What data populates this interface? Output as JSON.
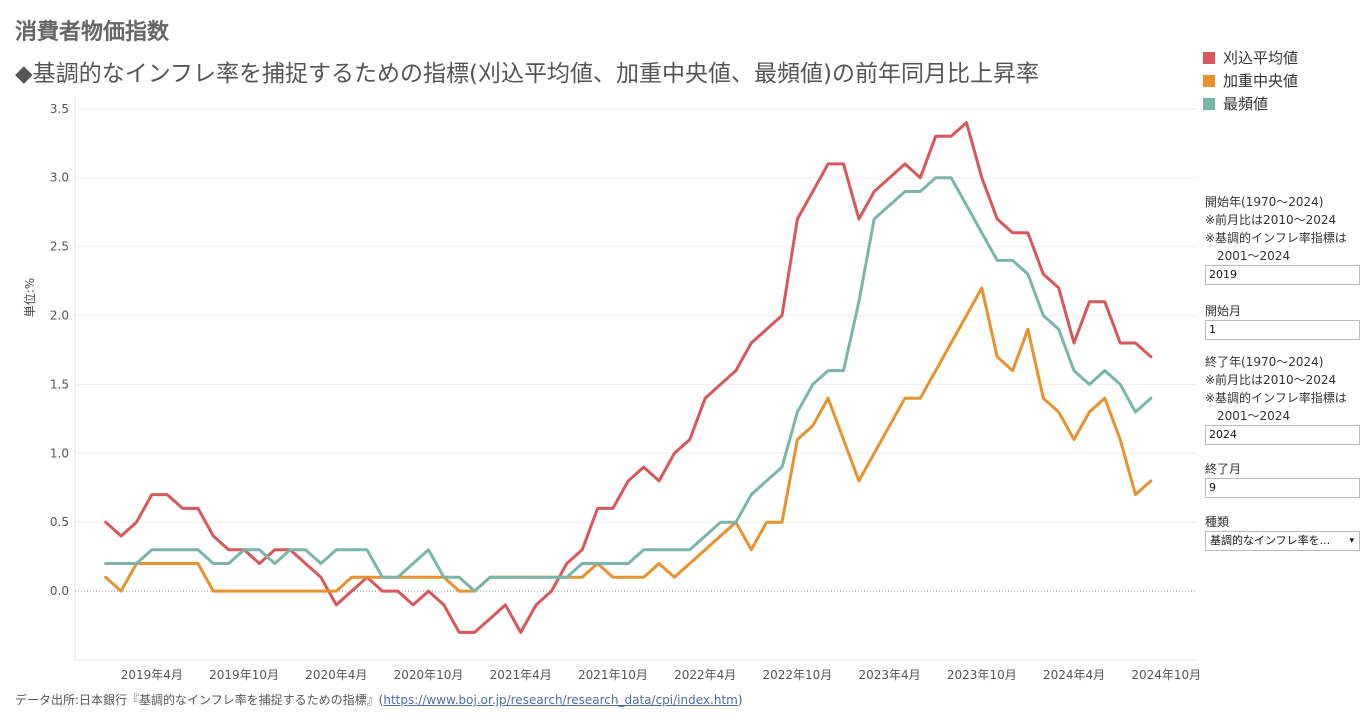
{
  "page": {
    "title": "消費者物価指数",
    "chart_title": "◆基調的なインフレ率を捕捉するための指標(刈込平均値、加重中央値、最頻値)の前年同月比上昇率"
  },
  "legend": [
    {
      "label": "刈込平均値",
      "color": "#d9575b"
    },
    {
      "label": "加重中央値",
      "color": "#e8912f"
    },
    {
      "label": "最頻値",
      "color": "#79b6aa"
    }
  ],
  "controls": {
    "start_year_label": "開始年(1970〜2024)",
    "note1": "※前月比は2010〜2024",
    "note2": "※基調的インフレ率指標は",
    "note3": "2001〜2024",
    "start_year_value": "2019",
    "start_month_label": "開始月",
    "start_month_value": "1",
    "end_year_label": "終了年(1970〜2024)",
    "end_year_value": "2024",
    "end_month_label": "終了月",
    "end_month_value": "9",
    "kind_label": "種類",
    "kind_value": "基調的なインフレ率を...",
    "dropdown_icon": "▾"
  },
  "footer": {
    "source_text": "データ出所:日本銀行『基調的なインフレ率を捕捉するための指標』(",
    "link_text": "https://www.boj.or.jp/research/research_data/cpi/index.htm",
    "close": ")"
  },
  "chart_data": {
    "type": "line",
    "ylabel": "単位:%",
    "ylim": [
      -0.5,
      3.6
    ],
    "yticks": [
      0.0,
      0.5,
      1.0,
      1.5,
      2.0,
      2.5,
      3.0,
      3.5
    ],
    "ytick_labels": [
      "0.0",
      "0.5",
      "1.0",
      "1.5",
      "2.0",
      "2.5",
      "3.0",
      "3.5"
    ],
    "x_start": "2019-01",
    "x_end": "2024-09",
    "xaxis_range": [
      "2018-11",
      "2024-12"
    ],
    "xticks": [
      "2019-04",
      "2019-10",
      "2020-04",
      "2020-10",
      "2021-04",
      "2021-10",
      "2022-04",
      "2022-10",
      "2023-04",
      "2023-10",
      "2024-04",
      "2024-10"
    ],
    "xtick_labels": [
      "2019年4月",
      "2019年10月",
      "2020年4月",
      "2020年10月",
      "2021年4月",
      "2021年10月",
      "2022年4月",
      "2022年10月",
      "2023年4月",
      "2023年10月",
      "2024年4月",
      "2024年10月"
    ],
    "grid": "horizontal",
    "legend_position": "top-right",
    "series": [
      {
        "name": "刈込平均値",
        "color": "#d9575b",
        "values": [
          0.5,
          0.4,
          0.5,
          0.7,
          0.7,
          0.6,
          0.6,
          0.4,
          0.3,
          0.3,
          0.2,
          0.3,
          0.3,
          0.2,
          0.1,
          -0.1,
          0.0,
          0.1,
          0.0,
          0.0,
          -0.1,
          0.0,
          -0.1,
          -0.3,
          -0.3,
          -0.2,
          -0.1,
          -0.3,
          -0.1,
          0.0,
          0.2,
          0.3,
          0.6,
          0.6,
          0.8,
          0.9,
          0.8,
          1.0,
          1.1,
          1.4,
          1.5,
          1.6,
          1.8,
          1.9,
          2.0,
          2.7,
          2.9,
          3.1,
          3.1,
          2.7,
          2.9,
          3.0,
          3.1,
          3.0,
          3.3,
          3.3,
          3.4,
          3.0,
          2.7,
          2.6,
          2.6,
          2.3,
          2.2,
          1.8,
          2.1,
          2.1,
          1.8,
          1.8,
          1.7
        ]
      },
      {
        "name": "加重中央値",
        "color": "#e8912f",
        "values": [
          0.1,
          0.0,
          0.2,
          0.2,
          0.2,
          0.2,
          0.2,
          0.0,
          0.0,
          0.0,
          0.0,
          0.0,
          0.0,
          0.0,
          0.0,
          0.0,
          0.1,
          0.1,
          0.1,
          0.1,
          0.1,
          0.1,
          0.1,
          0.0,
          0.0,
          0.1,
          0.1,
          0.1,
          0.1,
          0.1,
          0.1,
          0.1,
          0.2,
          0.1,
          0.1,
          0.1,
          0.2,
          0.1,
          0.2,
          0.3,
          0.4,
          0.5,
          0.3,
          0.5,
          0.5,
          1.1,
          1.2,
          1.4,
          1.1,
          0.8,
          1.0,
          1.2,
          1.4,
          1.4,
          1.6,
          1.8,
          2.0,
          2.2,
          1.7,
          1.6,
          1.9,
          1.4,
          1.3,
          1.1,
          1.3,
          1.4,
          1.1,
          0.7,
          0.8
        ]
      },
      {
        "name": "最頻値",
        "color": "#79b6aa",
        "values": [
          0.2,
          0.2,
          0.2,
          0.3,
          0.3,
          0.3,
          0.3,
          0.2,
          0.2,
          0.3,
          0.3,
          0.2,
          0.3,
          0.3,
          0.2,
          0.3,
          0.3,
          0.3,
          0.1,
          0.1,
          0.2,
          0.3,
          0.1,
          0.1,
          0.0,
          0.1,
          0.1,
          0.1,
          0.1,
          0.1,
          0.1,
          0.2,
          0.2,
          0.2,
          0.2,
          0.3,
          0.3,
          0.3,
          0.3,
          0.4,
          0.5,
          0.5,
          0.7,
          0.8,
          0.9,
          1.3,
          1.5,
          1.6,
          1.6,
          2.1,
          2.7,
          2.8,
          2.9,
          2.9,
          3.0,
          3.0,
          2.8,
          2.6,
          2.4,
          2.4,
          2.3,
          2.0,
          1.9,
          1.6,
          1.5,
          1.6,
          1.5,
          1.3,
          1.4
        ]
      }
    ]
  }
}
